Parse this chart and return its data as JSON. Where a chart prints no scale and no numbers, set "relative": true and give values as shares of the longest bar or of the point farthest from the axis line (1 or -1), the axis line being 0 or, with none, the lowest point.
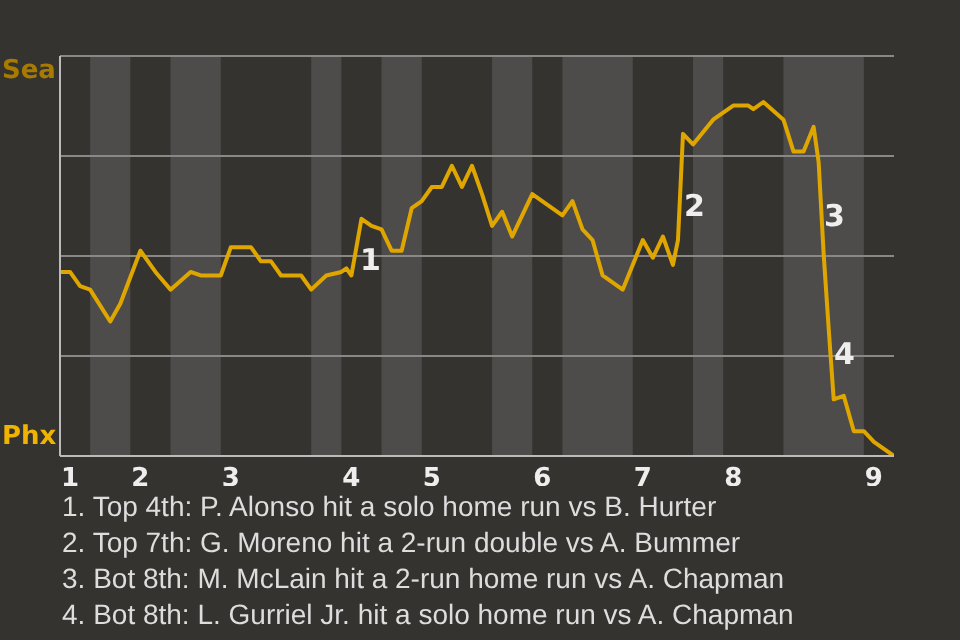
{
  "chart_data": {
    "type": "line",
    "relative": true,
    "categories": [
      null,
      null,
      "1",
      null,
      null,
      null,
      null,
      null,
      null,
      null,
      null,
      null,
      null,
      null,
      null,
      null,
      "2",
      null,
      null,
      null,
      null,
      null,
      null,
      null,
      null,
      null,
      null,
      null,
      null,
      null,
      null,
      null,
      null,
      null,
      "3",
      null,
      null,
      null,
      null,
      null,
      null,
      null,
      null,
      null,
      null,
      null,
      null,
      null,
      null,
      null,
      null,
      null,
      null,
      null,
      null,
      null,
      null,
      null,
      "4",
      null,
      null,
      null,
      null,
      null,
      null,
      null,
      null,
      null,
      null,
      null,
      null,
      null,
      null,
      null,
      "5",
      null,
      null,
      null,
      null,
      null,
      null,
      null,
      null,
      null,
      null,
      null,
      null,
      null,
      null,
      null,
      null,
      null,
      null,
      null,
      null,
      null,
      "6",
      null,
      null,
      null,
      null,
      null,
      null,
      null,
      null,
      null,
      null,
      null,
      null,
      null,
      null,
      null,
      null,
      null,
      null,
      null,
      "7",
      null,
      null,
      null,
      null,
      null,
      null,
      null,
      null,
      null,
      null,
      null,
      null,
      null,
      null,
      null,
      null,
      null,
      "8",
      null,
      null,
      null,
      null,
      null,
      null,
      null,
      null,
      null,
      null,
      null,
      null,
      null,
      null,
      null,
      null,
      null,
      null,
      null,
      null,
      null,
      null,
      null,
      null,
      null,
      null,
      null,
      "9",
      null,
      null,
      null,
      null
    ],
    "series": [
      {
        "color": "#e0a600",
        "values": [
          0.52,
          null,
          0.52,
          null,
          0.48,
          null,
          0.47,
          null,
          null,
          null,
          0.38,
          null,
          0.43,
          null,
          null,
          null,
          0.58,
          null,
          null,
          0.52,
          null,
          null,
          0.47,
          null,
          null,
          null,
          0.52,
          null,
          0.51,
          null,
          null,
          null,
          0.51,
          null,
          0.59,
          null,
          null,
          null,
          0.59,
          null,
          0.55,
          null,
          0.55,
          null,
          0.51,
          null,
          null,
          null,
          0.51,
          null,
          0.47,
          null,
          null,
          0.51,
          null,
          null,
          0.52,
          0.53,
          0.51,
          null,
          0.67,
          null,
          0.65,
          null,
          0.64,
          null,
          0.58,
          null,
          0.58,
          null,
          0.7,
          null,
          0.72,
          null,
          0.76,
          null,
          0.76,
          null,
          0.82,
          null,
          0.76,
          null,
          0.82,
          null,
          0.74,
          null,
          0.65,
          null,
          0.69,
          null,
          0.62,
          null,
          null,
          null,
          0.74,
          null,
          null,
          null,
          null,
          null,
          0.68,
          null,
          0.72,
          null,
          0.64,
          null,
          0.61,
          null,
          0.51,
          null,
          null,
          null,
          0.47,
          null,
          null,
          null,
          0.61,
          null,
          0.56,
          null,
          0.62,
          null,
          0.54,
          0.61,
          0.91,
          null,
          0.88,
          null,
          null,
          null,
          0.95,
          null,
          null,
          null,
          0.99,
          null,
          null,
          0.99,
          0.98,
          null,
          1,
          null,
          null,
          null,
          0.95,
          null,
          0.86,
          null,
          0.86,
          null,
          0.93,
          0.83,
          0.57,
          0.36,
          0.16,
          null,
          0.17,
          null,
          0.07,
          null,
          0.07,
          null,
          0.04,
          null,
          null,
          null,
          0
        ]
      }
    ],
    "grid": "y",
    "annotations": [
      "Sea",
      "Phx",
      "1",
      "2",
      "3",
      "4",
      "1. Top 4th: P. Alonso hit a solo home run vs B. Hurter",
      "2. Top 7th: G. Moreno hit a 2-run double vs A. Bummer",
      "3. Bot 8th: M. McLain hit a 2-run home run vs A. Chapman",
      "4. Bot 8th: L. Gurriel Jr. hit a solo home run vs A. Chapman"
    ]
  }
}
